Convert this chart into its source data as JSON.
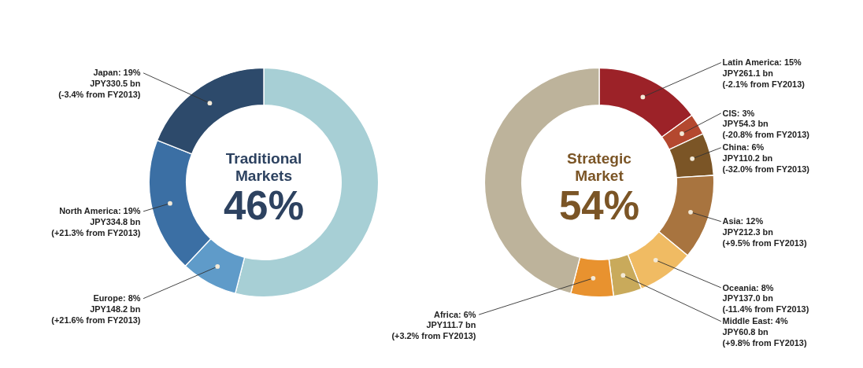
{
  "chart_data": [
    {
      "type": "donut",
      "title": "Traditional Markets",
      "annotations": [
        "46%"
      ],
      "legend": false,
      "categories": [
        null,
        null,
        null,
        null
      ],
      "values": [
        54,
        8,
        19,
        19
      ],
      "colors": [
        "#a7cfd5",
        "#5f9bc9",
        "#3b6fa4",
        "#2d4a6b"
      ],
      "value_labels": [
        null,
        "Europe: 8%\nJPY148.2 bn\n(+21.6% from FY2013)",
        "North America: 19%\nJPY334.8 bn\n(+21.3% from FY2013)",
        "Japan: 19%\nJPY330.5 bn\n(-3.4% from FY2013)"
      ]
    },
    {
      "type": "donut",
      "title": "Strategic Market",
      "annotations": [
        "54%"
      ],
      "legend": false,
      "categories": [
        null,
        null,
        null,
        null,
        null,
        null,
        null,
        null
      ],
      "values": [
        15,
        3,
        6,
        12,
        8,
        4,
        6,
        46
      ],
      "colors": [
        "#9c2228",
        "#b4482f",
        "#7b5526",
        "#a8743f",
        "#f0bb63",
        "#c9aa5b",
        "#e8922f",
        "#bdb39b"
      ],
      "value_labels": [
        "Latin America: 15%\nJPY261.1 bn\n(-2.1% from FY2013)",
        "CIS: 3%\nJPY54.3 bn\n(-20.8% from FY2013)",
        "China: 6%\nJPY110.2 bn\n(-32.0% from FY2013)",
        "Asia: 12%\nJPY212.3 bn\n(+9.5% from FY2013)",
        "Oceania: 8%\nJPY137.0 bn\n(-11.4% from FY2013)",
        "Middle East: 4%\nJPY60.8 bn\n(+9.8% from FY2013)",
        "Africa: 6%\nJPY111.7 bn\n(+3.2% from FY2013)",
        null
      ]
    }
  ]
}
